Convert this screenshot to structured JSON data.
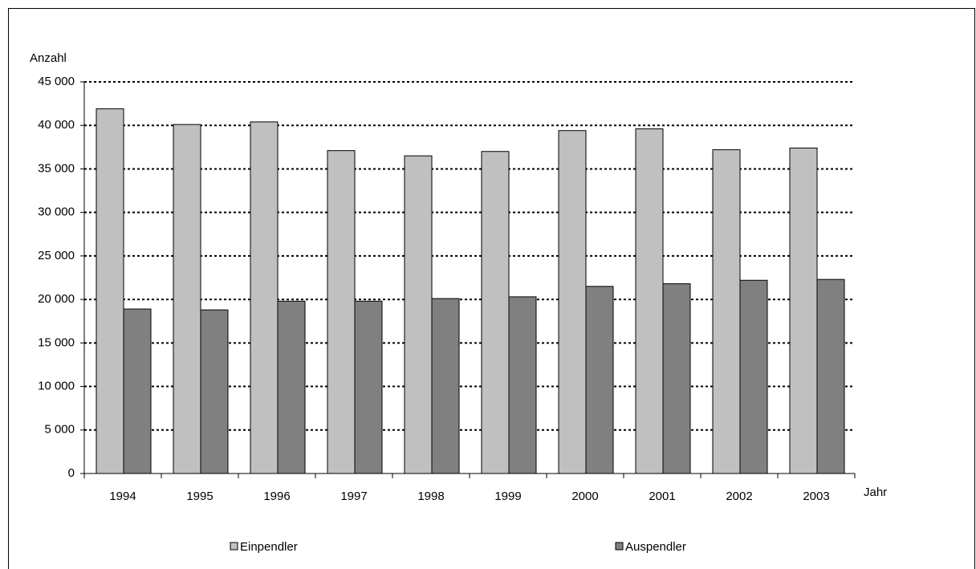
{
  "chart_data": {
    "type": "bar",
    "y_label": "Anzahl",
    "x_label": "Jahr",
    "categories": [
      "1994",
      "1995",
      "1996",
      "1997",
      "1998",
      "1999",
      "2000",
      "2001",
      "2002",
      "2003"
    ],
    "series": [
      {
        "name": "Einpendler",
        "color": "#c0c0c0",
        "values": [
          41900,
          40100,
          40400,
          37100,
          36500,
          37000,
          39400,
          39600,
          37200,
          37400
        ]
      },
      {
        "name": "Auspendler",
        "color": "#808080",
        "values": [
          18900,
          18800,
          19800,
          19800,
          20100,
          20300,
          21500,
          21800,
          22200,
          22300
        ]
      }
    ],
    "ylim": [
      0,
      45000
    ],
    "yticks": [
      0,
      {
        "value": 5000,
        "label": "5 000"
      },
      {
        "value": 10000,
        "label": "10 000"
      },
      {
        "value": 15000,
        "label": "15 000"
      },
      {
        "value": 20000,
        "label": "20 000"
      },
      {
        "value": 25000,
        "label": "25 000"
      },
      {
        "value": 30000,
        "label": "30 000"
      },
      {
        "value": 35000,
        "label": "35 000"
      },
      {
        "value": 40000,
        "label": "40 000"
      },
      {
        "value": 45000,
        "label": "45 000"
      }
    ],
    "grid": true,
    "legend": "bottom"
  }
}
